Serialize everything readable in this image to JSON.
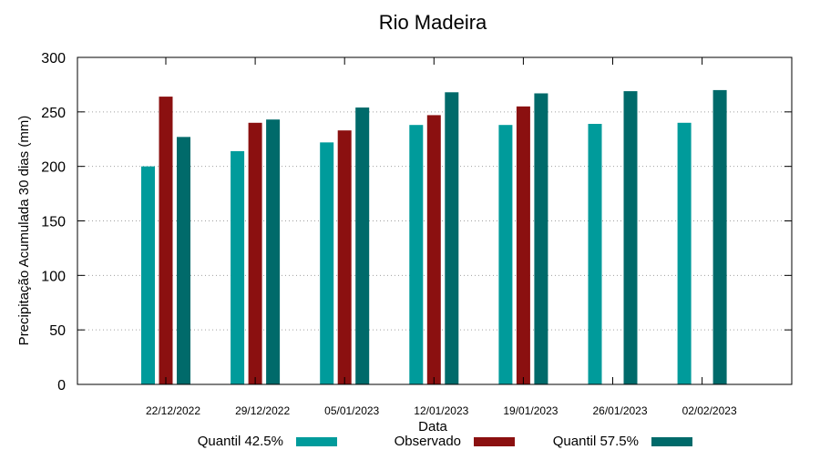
{
  "chart_data": {
    "type": "bar",
    "title": "Rio Madeira",
    "xlabel": "Data",
    "ylabel": "Precipitação Acumulada 30 dias (mm)",
    "ylim": [
      0,
      300
    ],
    "yticks": [
      0,
      50,
      100,
      150,
      200,
      250,
      300
    ],
    "grid": true,
    "legend_position": "bottom",
    "categories": [
      "22/12/2022",
      "29/12/2022",
      "05/01/2023",
      "12/01/2023",
      "19/01/2023",
      "26/01/2023",
      "02/02/2023"
    ],
    "series": [
      {
        "name": "Quantil 42.5%",
        "color": "#009b9b",
        "values": [
          200,
          214,
          222,
          238,
          238,
          239,
          240
        ]
      },
      {
        "name": "Observado",
        "color": "#8b1010",
        "values": [
          264,
          240,
          233,
          247,
          255,
          null,
          null
        ]
      },
      {
        "name": "Quantil 57.5%",
        "color": "#006a6a",
        "values": [
          227,
          243,
          254,
          268,
          267,
          269,
          270
        ]
      }
    ]
  }
}
